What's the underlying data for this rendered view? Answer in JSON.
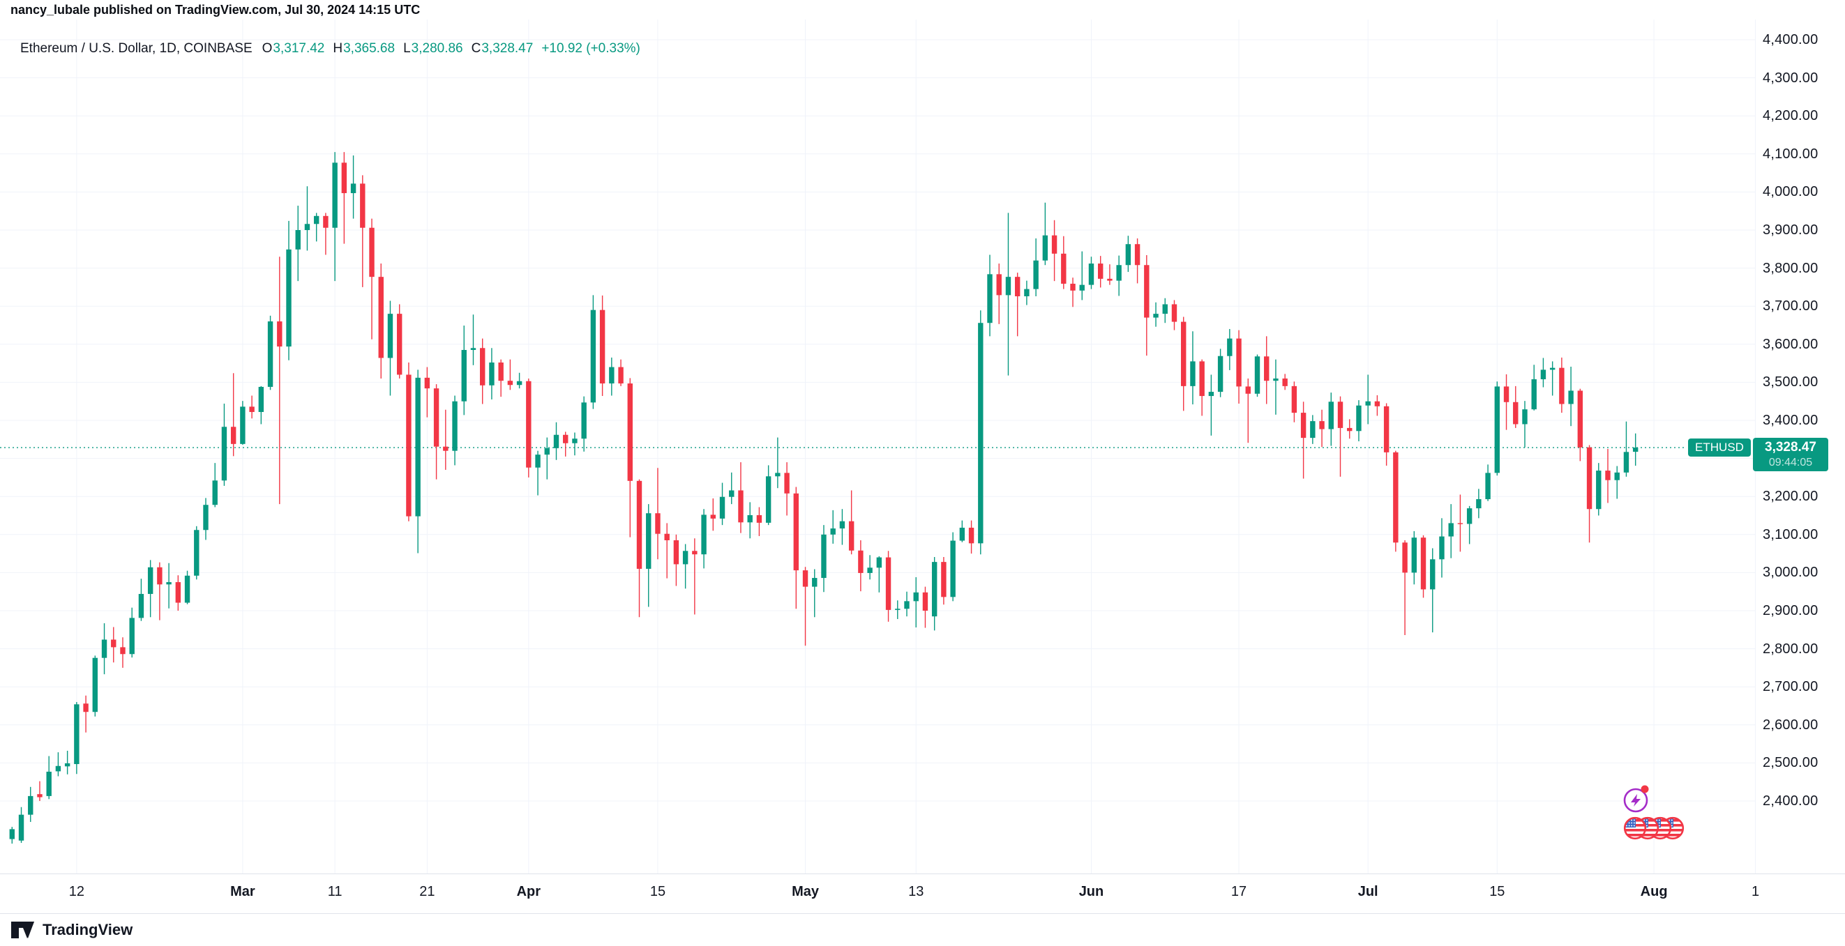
{
  "attribution": {
    "text": "nancy_lubale published on TradingView.com, Jul 30, 2024 14:15 UTC"
  },
  "legend": {
    "title": "Ethereum / U.S. Dollar, 1D, COINBASE",
    "open_label": "O",
    "open": "3,317.42",
    "high_label": "H",
    "high": "3,365.68",
    "low_label": "L",
    "low": "3,280.86",
    "close_label": "C",
    "close": "3,328.47",
    "change": "+10.92 (+0.33%)"
  },
  "price_badge": {
    "symbol": "ETHUSD",
    "price": "3,328.47",
    "countdown": "09:44:05"
  },
  "footer": {
    "brand": "TradingView"
  },
  "colors": {
    "up": "#089981",
    "down": "#F23645",
    "grid": "#F0F3FA",
    "separator": "#E0E3EB",
    "text": "#131722",
    "badge_bg": "#089981",
    "event_purple": "#A42CC8",
    "event_red": "#F23645",
    "flag_blue": "#3C66C4",
    "background": "#FFFFFF"
  },
  "chart_data": {
    "type": "candlestick",
    "title": "Ethereum / U.S. Dollar, 1D, COINBASE",
    "symbol": "ETHUSD",
    "exchange": "COINBASE",
    "timeframe": "1D",
    "start_date": "2024-02-05",
    "end_date": "2024-07-30",
    "last_price": 3328.47,
    "grid": true,
    "y_axis": {
      "min": 2400,
      "max": 4400,
      "step": 100
    },
    "y_tick_labels": [
      "4,400.00",
      "4,300.00",
      "4,200.00",
      "4,100.00",
      "4,000.00",
      "3,900.00",
      "3,800.00",
      "3,700.00",
      "3,600.00",
      "3,500.00",
      "3,400.00",
      "3,300.00",
      "3,200.00",
      "3,100.00",
      "3,000.00",
      "2,900.00",
      "2,800.00",
      "2,700.00",
      "2,600.00",
      "2,500.00",
      "2,400.00"
    ],
    "x_ticks": [
      {
        "i": 7,
        "label": "12",
        "bold": false
      },
      {
        "i": 25,
        "label": "Mar",
        "bold": true
      },
      {
        "i": 35,
        "label": "11",
        "bold": false
      },
      {
        "i": 45,
        "label": "21",
        "bold": false
      },
      {
        "i": 56,
        "label": "Apr",
        "bold": true
      },
      {
        "i": 70,
        "label": "15",
        "bold": false
      },
      {
        "i": 86,
        "label": "May",
        "bold": true
      },
      {
        "i": 98,
        "label": "13",
        "bold": false
      },
      {
        "i": 117,
        "label": "Jun",
        "bold": true
      },
      {
        "i": 133,
        "label": "17",
        "bold": false
      },
      {
        "i": 147,
        "label": "Jul",
        "bold": true
      },
      {
        "i": 161,
        "label": "15",
        "bold": false
      },
      {
        "i": 178,
        "label": "Aug",
        "bold": true
      },
      {
        "i": 189,
        "label": "1",
        "bold": false
      }
    ],
    "candles": [
      [
        2300,
        2332,
        2288,
        2326
      ],
      [
        2296,
        2384,
        2290,
        2364
      ],
      [
        2364,
        2437,
        2345,
        2413
      ],
      [
        2418,
        2452,
        2400,
        2410
      ],
      [
        2413,
        2518,
        2405,
        2477
      ],
      [
        2478,
        2528,
        2465,
        2492
      ],
      [
        2491,
        2532,
        2470,
        2499
      ],
      [
        2497,
        2660,
        2471,
        2654
      ],
      [
        2656,
        2677,
        2580,
        2634
      ],
      [
        2634,
        2782,
        2622,
        2776
      ],
      [
        2776,
        2867,
        2733,
        2824
      ],
      [
        2824,
        2857,
        2764,
        2804
      ],
      [
        2804,
        2830,
        2750,
        2786
      ],
      [
        2786,
        2908,
        2777,
        2881
      ],
      [
        2881,
        2984,
        2873,
        2944
      ],
      [
        2944,
        3033,
        2883,
        3014
      ],
      [
        3014,
        3027,
        2875,
        2969
      ],
      [
        2969,
        3025,
        2906,
        2975
      ],
      [
        2975,
        2993,
        2900,
        2921
      ],
      [
        2921,
        3005,
        2917,
        2992
      ],
      [
        2992,
        3122,
        2982,
        3112
      ],
      [
        3112,
        3196,
        3086,
        3178
      ],
      [
        3178,
        3288,
        3172,
        3242
      ],
      [
        3242,
        3444,
        3228,
        3383
      ],
      [
        3383,
        3524,
        3306,
        3338
      ],
      [
        3338,
        3451,
        3336,
        3436
      ],
      [
        3436,
        3465,
        3405,
        3422
      ],
      [
        3422,
        3490,
        3390,
        3488
      ],
      [
        3488,
        3675,
        3480,
        3660
      ],
      [
        3660,
        3830,
        3180,
        3594
      ],
      [
        3594,
        3924,
        3558,
        3849
      ],
      [
        3849,
        3964,
        3766,
        3900
      ],
      [
        3900,
        4015,
        3846,
        3916
      ],
      [
        3916,
        3945,
        3870,
        3937
      ],
      [
        3937,
        3945,
        3835,
        3906
      ],
      [
        3906,
        4105,
        3766,
        4077
      ],
      [
        4077,
        4105,
        3864,
        3997
      ],
      [
        3997,
        4096,
        3930,
        4022
      ],
      [
        4022,
        4044,
        3750,
        3906
      ],
      [
        3906,
        3930,
        3613,
        3777
      ],
      [
        3777,
        3812,
        3510,
        3564
      ],
      [
        3564,
        3714,
        3465,
        3680
      ],
      [
        3680,
        3705,
        3510,
        3520
      ],
      [
        3520,
        3552,
        3135,
        3148
      ],
      [
        3148,
        3533,
        3051,
        3512
      ],
      [
        3512,
        3540,
        3408,
        3484
      ],
      [
        3484,
        3495,
        3245,
        3331
      ],
      [
        3331,
        3428,
        3270,
        3320
      ],
      [
        3320,
        3465,
        3282,
        3450
      ],
      [
        3450,
        3649,
        3414,
        3585
      ],
      [
        3585,
        3678,
        3545,
        3590
      ],
      [
        3590,
        3615,
        3443,
        3492
      ],
      [
        3492,
        3590,
        3455,
        3552
      ],
      [
        3552,
        3560,
        3462,
        3504
      ],
      [
        3504,
        3560,
        3480,
        3493
      ],
      [
        3493,
        3525,
        3484,
        3503
      ],
      [
        3503,
        3510,
        3250,
        3276
      ],
      [
        3276,
        3320,
        3203,
        3310
      ],
      [
        3310,
        3355,
        3245,
        3327
      ],
      [
        3327,
        3395,
        3296,
        3362
      ],
      [
        3362,
        3370,
        3305,
        3340
      ],
      [
        3340,
        3368,
        3308,
        3352
      ],
      [
        3352,
        3463,
        3318,
        3447
      ],
      [
        3447,
        3729,
        3430,
        3690
      ],
      [
        3690,
        3728,
        3464,
        3497
      ],
      [
        3497,
        3565,
        3465,
        3540
      ],
      [
        3540,
        3560,
        3490,
        3497
      ],
      [
        3497,
        3511,
        3093,
        3241
      ],
      [
        3241,
        3245,
        2883,
        3010
      ],
      [
        3010,
        3180,
        2910,
        3156
      ],
      [
        3156,
        3275,
        3035,
        3102
      ],
      [
        3102,
        3130,
        2985,
        3085
      ],
      [
        3085,
        3100,
        2965,
        3022
      ],
      [
        3022,
        3075,
        2958,
        3057
      ],
      [
        3057,
        3090,
        2890,
        3048
      ],
      [
        3048,
        3167,
        3011,
        3152
      ],
      [
        3152,
        3195,
        3110,
        3142
      ],
      [
        3142,
        3236,
        3125,
        3199
      ],
      [
        3199,
        3263,
        3180,
        3216
      ],
      [
        3216,
        3290,
        3104,
        3132
      ],
      [
        3132,
        3185,
        3090,
        3151
      ],
      [
        3151,
        3172,
        3096,
        3131
      ],
      [
        3131,
        3282,
        3125,
        3253
      ],
      [
        3253,
        3355,
        3222,
        3262
      ],
      [
        3262,
        3290,
        3150,
        3208
      ],
      [
        3208,
        3225,
        2905,
        3006
      ],
      [
        3006,
        3015,
        2808,
        2963
      ],
      [
        2963,
        3009,
        2883,
        2986
      ],
      [
        2986,
        3125,
        2949,
        3100
      ],
      [
        3100,
        3164,
        3076,
        3116
      ],
      [
        3116,
        3167,
        3073,
        3135
      ],
      [
        3135,
        3216,
        3048,
        3058
      ],
      [
        3058,
        3085,
        2951,
        2999
      ],
      [
        2999,
        3046,
        2982,
        3013
      ],
      [
        3013,
        3043,
        2948,
        3040
      ],
      [
        3040,
        3057,
        2871,
        2902
      ],
      [
        2902,
        2927,
        2878,
        2905
      ],
      [
        2905,
        2950,
        2885,
        2925
      ],
      [
        2925,
        2988,
        2856,
        2948
      ],
      [
        2948,
        2963,
        2855,
        2900
      ],
      [
        2885,
        3041,
        2848,
        3028
      ],
      [
        3028,
        3041,
        2916,
        2936
      ],
      [
        2936,
        3106,
        2925,
        3084
      ],
      [
        3084,
        3137,
        3080,
        3118
      ],
      [
        3118,
        3137,
        3050,
        3077
      ],
      [
        3077,
        3689,
        3048,
        3656
      ],
      [
        3656,
        3835,
        3621,
        3784
      ],
      [
        3784,
        3812,
        3653,
        3729
      ],
      [
        3729,
        3945,
        3518,
        3777
      ],
      [
        3777,
        3788,
        3621,
        3726
      ],
      [
        3726,
        3767,
        3703,
        3745
      ],
      [
        3745,
        3878,
        3726,
        3820
      ],
      [
        3820,
        3972,
        3808,
        3886
      ],
      [
        3886,
        3926,
        3766,
        3838
      ],
      [
        3838,
        3884,
        3745,
        3759
      ],
      [
        3759,
        3775,
        3698,
        3741
      ],
      [
        3741,
        3844,
        3716,
        3756
      ],
      [
        3756,
        3830,
        3745,
        3812
      ],
      [
        3812,
        3832,
        3749,
        3772
      ],
      [
        3772,
        3810,
        3756,
        3767
      ],
      [
        3767,
        3833,
        3727,
        3808
      ],
      [
        3808,
        3885,
        3790,
        3863
      ],
      [
        3863,
        3878,
        3760,
        3808
      ],
      [
        3808,
        3834,
        3570,
        3670
      ],
      [
        3670,
        3710,
        3646,
        3680
      ],
      [
        3680,
        3721,
        3656,
        3705
      ],
      [
        3705,
        3716,
        3637,
        3659
      ],
      [
        3659,
        3672,
        3425,
        3490
      ],
      [
        3490,
        3634,
        3442,
        3555
      ],
      [
        3555,
        3560,
        3412,
        3464
      ],
      [
        3464,
        3520,
        3360,
        3475
      ],
      [
        3475,
        3588,
        3461,
        3569
      ],
      [
        3569,
        3640,
        3532,
        3615
      ],
      [
        3615,
        3637,
        3444,
        3489
      ],
      [
        3489,
        3510,
        3341,
        3470
      ],
      [
        3470,
        3573,
        3462,
        3568
      ],
      [
        3568,
        3621,
        3443,
        3504
      ],
      [
        3504,
        3560,
        3415,
        3510
      ],
      [
        3510,
        3522,
        3480,
        3490
      ],
      [
        3490,
        3502,
        3395,
        3420
      ],
      [
        3420,
        3449,
        3247,
        3354
      ],
      [
        3354,
        3414,
        3338,
        3398
      ],
      [
        3398,
        3428,
        3330,
        3377
      ],
      [
        3377,
        3473,
        3333,
        3449
      ],
      [
        3449,
        3463,
        3252,
        3380
      ],
      [
        3380,
        3403,
        3352,
        3372
      ],
      [
        3372,
        3453,
        3345,
        3439
      ],
      [
        3439,
        3520,
        3390,
        3450
      ],
      [
        3450,
        3466,
        3412,
        3437
      ],
      [
        3437,
        3445,
        3281,
        3316
      ],
      [
        3316,
        3320,
        3055,
        3079
      ],
      [
        3079,
        3085,
        2836,
        3000
      ],
      [
        3000,
        3109,
        2969,
        3092
      ],
      [
        3092,
        3098,
        2934,
        2956
      ],
      [
        2956,
        3064,
        2843,
        3035
      ],
      [
        3035,
        3143,
        2987,
        3095
      ],
      [
        3095,
        3180,
        3038,
        3130
      ],
      [
        3130,
        3205,
        3055,
        3128
      ],
      [
        3128,
        3175,
        3075,
        3169
      ],
      [
        3169,
        3220,
        3143,
        3193
      ],
      [
        3193,
        3284,
        3188,
        3262
      ],
      [
        3262,
        3502,
        3255,
        3489
      ],
      [
        3489,
        3521,
        3375,
        3448
      ],
      [
        3448,
        3490,
        3380,
        3390
      ],
      [
        3390,
        3451,
        3329,
        3429
      ],
      [
        3429,
        3546,
        3426,
        3508
      ],
      [
        3508,
        3564,
        3487,
        3533
      ],
      [
        3533,
        3555,
        3465,
        3538
      ],
      [
        3538,
        3565,
        3420,
        3443
      ],
      [
        3443,
        3541,
        3385,
        3478
      ],
      [
        3478,
        3483,
        3293,
        3329
      ],
      [
        3329,
        3335,
        3079,
        3167
      ],
      [
        3167,
        3288,
        3150,
        3268
      ],
      [
        3268,
        3325,
        3183,
        3243
      ],
      [
        3243,
        3280,
        3194,
        3263
      ],
      [
        3263,
        3397,
        3252,
        3317
      ],
      [
        3317.42,
        3365.68,
        3280.86,
        3328.47
      ]
    ]
  }
}
